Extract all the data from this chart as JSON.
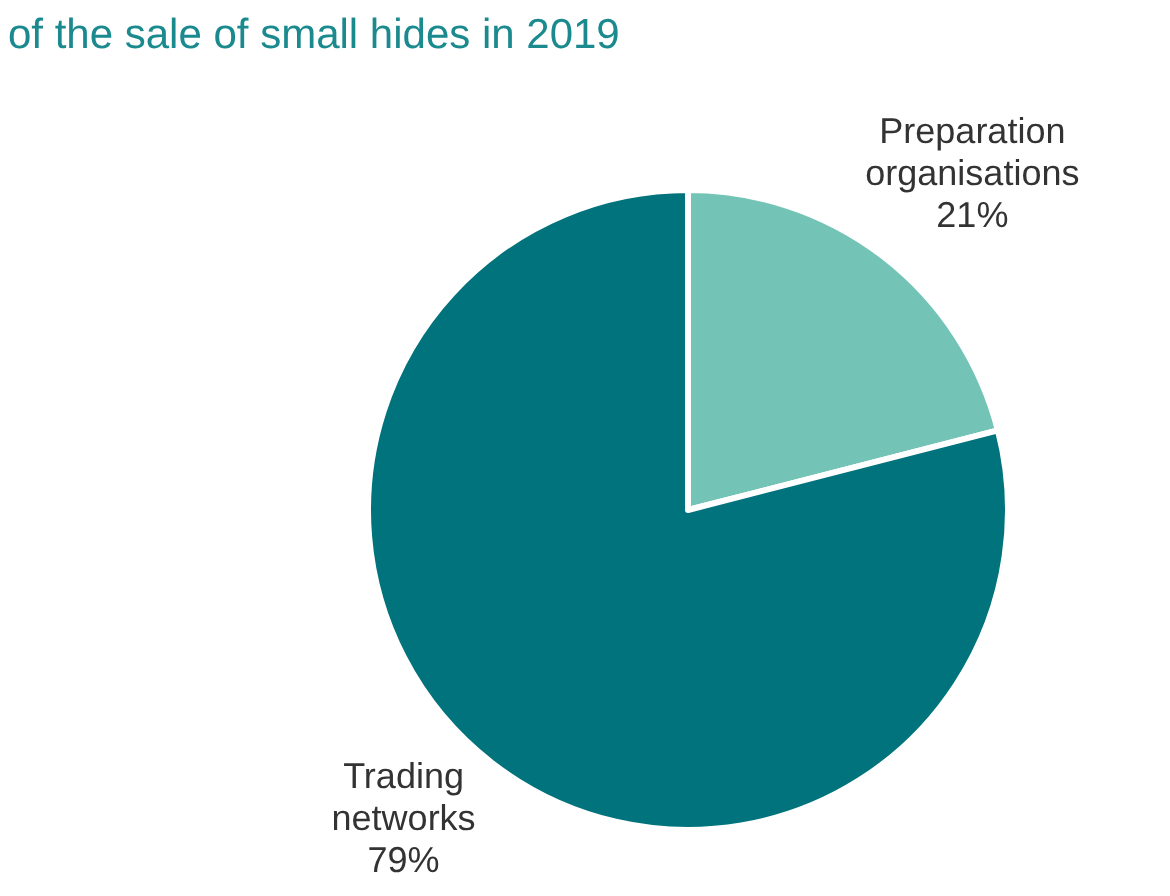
{
  "chart_data": {
    "type": "pie",
    "title": "of the sale of small hides in 2019",
    "categories": [
      "Preparation organisations",
      "Trading networks"
    ],
    "values": [
      21,
      79
    ],
    "colors": [
      "#73c4b6",
      "#00737c"
    ],
    "value_labels": [
      "21%",
      "79%"
    ]
  }
}
